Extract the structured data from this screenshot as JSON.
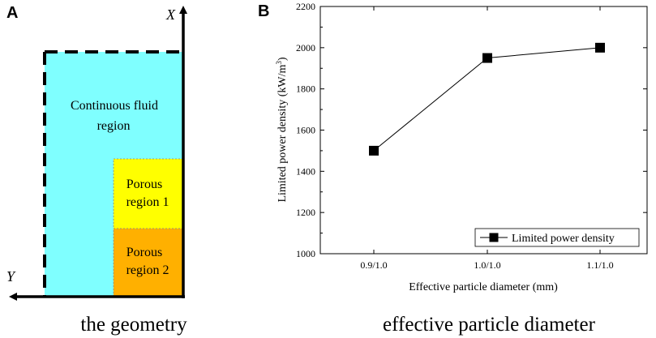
{
  "panel_a": {
    "letter": "A",
    "axis_x_label": "X",
    "axis_y_label": "Y",
    "fluid_region": [
      "Continuous fluid",
      "region"
    ],
    "porous_region_1": [
      "Porous",
      "region 1"
    ],
    "porous_region_2": [
      "Porous",
      "region 2"
    ],
    "caption": "the geometry",
    "colors": {
      "fluid": "#7FFFFF",
      "porous1": "#FFFF00",
      "porous2": "#FFB000"
    }
  },
  "panel_b": {
    "letter": "B",
    "caption": "effective particle diameter"
  },
  "chart_data": {
    "type": "line",
    "title": "",
    "xlabel": "Effective particle diameter (mm)",
    "ylabel_main": "Limited power density (kW/m",
    "ylabel_sup": "3",
    "ylabel_close": ")",
    "categories": [
      "0.9/1.0",
      "1.0/1.0",
      "1.1/1.0"
    ],
    "series": [
      {
        "name": "Limited power density",
        "values": [
          1500,
          1950,
          2000
        ],
        "marker": "square"
      }
    ],
    "ylim": [
      1000,
      2200
    ],
    "yticks": [
      1000,
      1200,
      1400,
      1600,
      1800,
      2000,
      2200
    ],
    "legend_position": "bottom-right",
    "grid": false
  }
}
